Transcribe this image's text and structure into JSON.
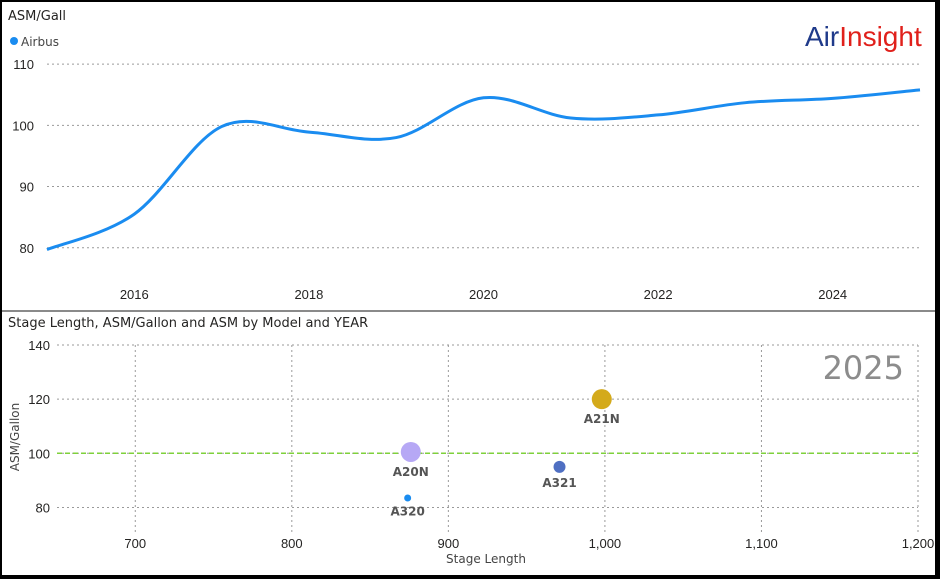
{
  "logo": {
    "part1": "Air",
    "part2": "Insight"
  },
  "colors": {
    "line": "#1a8cf0",
    "reference": "#7fd13b",
    "A20N": "#b6a8f5",
    "A320": "#1a8cf0",
    "A321": "#4f6fc2",
    "A21N": "#d4aa1b"
  },
  "top_chart": {
    "title": "ASM/Gall",
    "legend_label": "Airbus",
    "y_ticks": [
      "110",
      "100",
      "90",
      "80"
    ],
    "x_ticks": [
      "2016",
      "2018",
      "2020",
      "2022",
      "2024"
    ]
  },
  "bottom_chart": {
    "title": "Stage Length, ASM/Gallon and ASM by Model and YEAR",
    "xlabel": "Stage Length",
    "ylabel": "ASM/Gallon",
    "year_label": "2025",
    "y_ticks": [
      "140",
      "120",
      "100",
      "80"
    ],
    "x_ticks": [
      "700",
      "800",
      "900",
      "1,000",
      "1,100",
      "1,200"
    ]
  },
  "chart_data": [
    {
      "type": "line",
      "title": "ASM/Gall",
      "series": [
        {
          "name": "Airbus",
          "x": [
            2015,
            2016,
            2017,
            2018,
            2019,
            2020,
            2021,
            2022,
            2023,
            2024,
            2025
          ],
          "values": [
            79.7,
            85.5,
            99.8,
            98.9,
            98.0,
            104.5,
            101.2,
            101.7,
            103.7,
            104.4,
            105.8
          ]
        }
      ],
      "ylim": [
        78,
        111
      ],
      "xlim": [
        2015,
        2025
      ],
      "grid": true,
      "legend": "top-left"
    },
    {
      "type": "scatter",
      "title": "Stage Length, ASM/Gallon and ASM by Model and YEAR",
      "xlabel": "Stage Length",
      "ylabel": "ASM/Gallon",
      "xlim": [
        650,
        1200
      ],
      "ylim": [
        75,
        140
      ],
      "reference_line_y": 100,
      "year": "2025",
      "points": [
        {
          "label": "A20N",
          "x": 876,
          "y": 100.5,
          "size": "large"
        },
        {
          "label": "A320",
          "x": 874,
          "y": 83.5,
          "size": "small"
        },
        {
          "label": "A321",
          "x": 971,
          "y": 95,
          "size": "medium"
        },
        {
          "label": "A21N",
          "x": 998,
          "y": 120,
          "size": "large"
        }
      ]
    }
  ]
}
